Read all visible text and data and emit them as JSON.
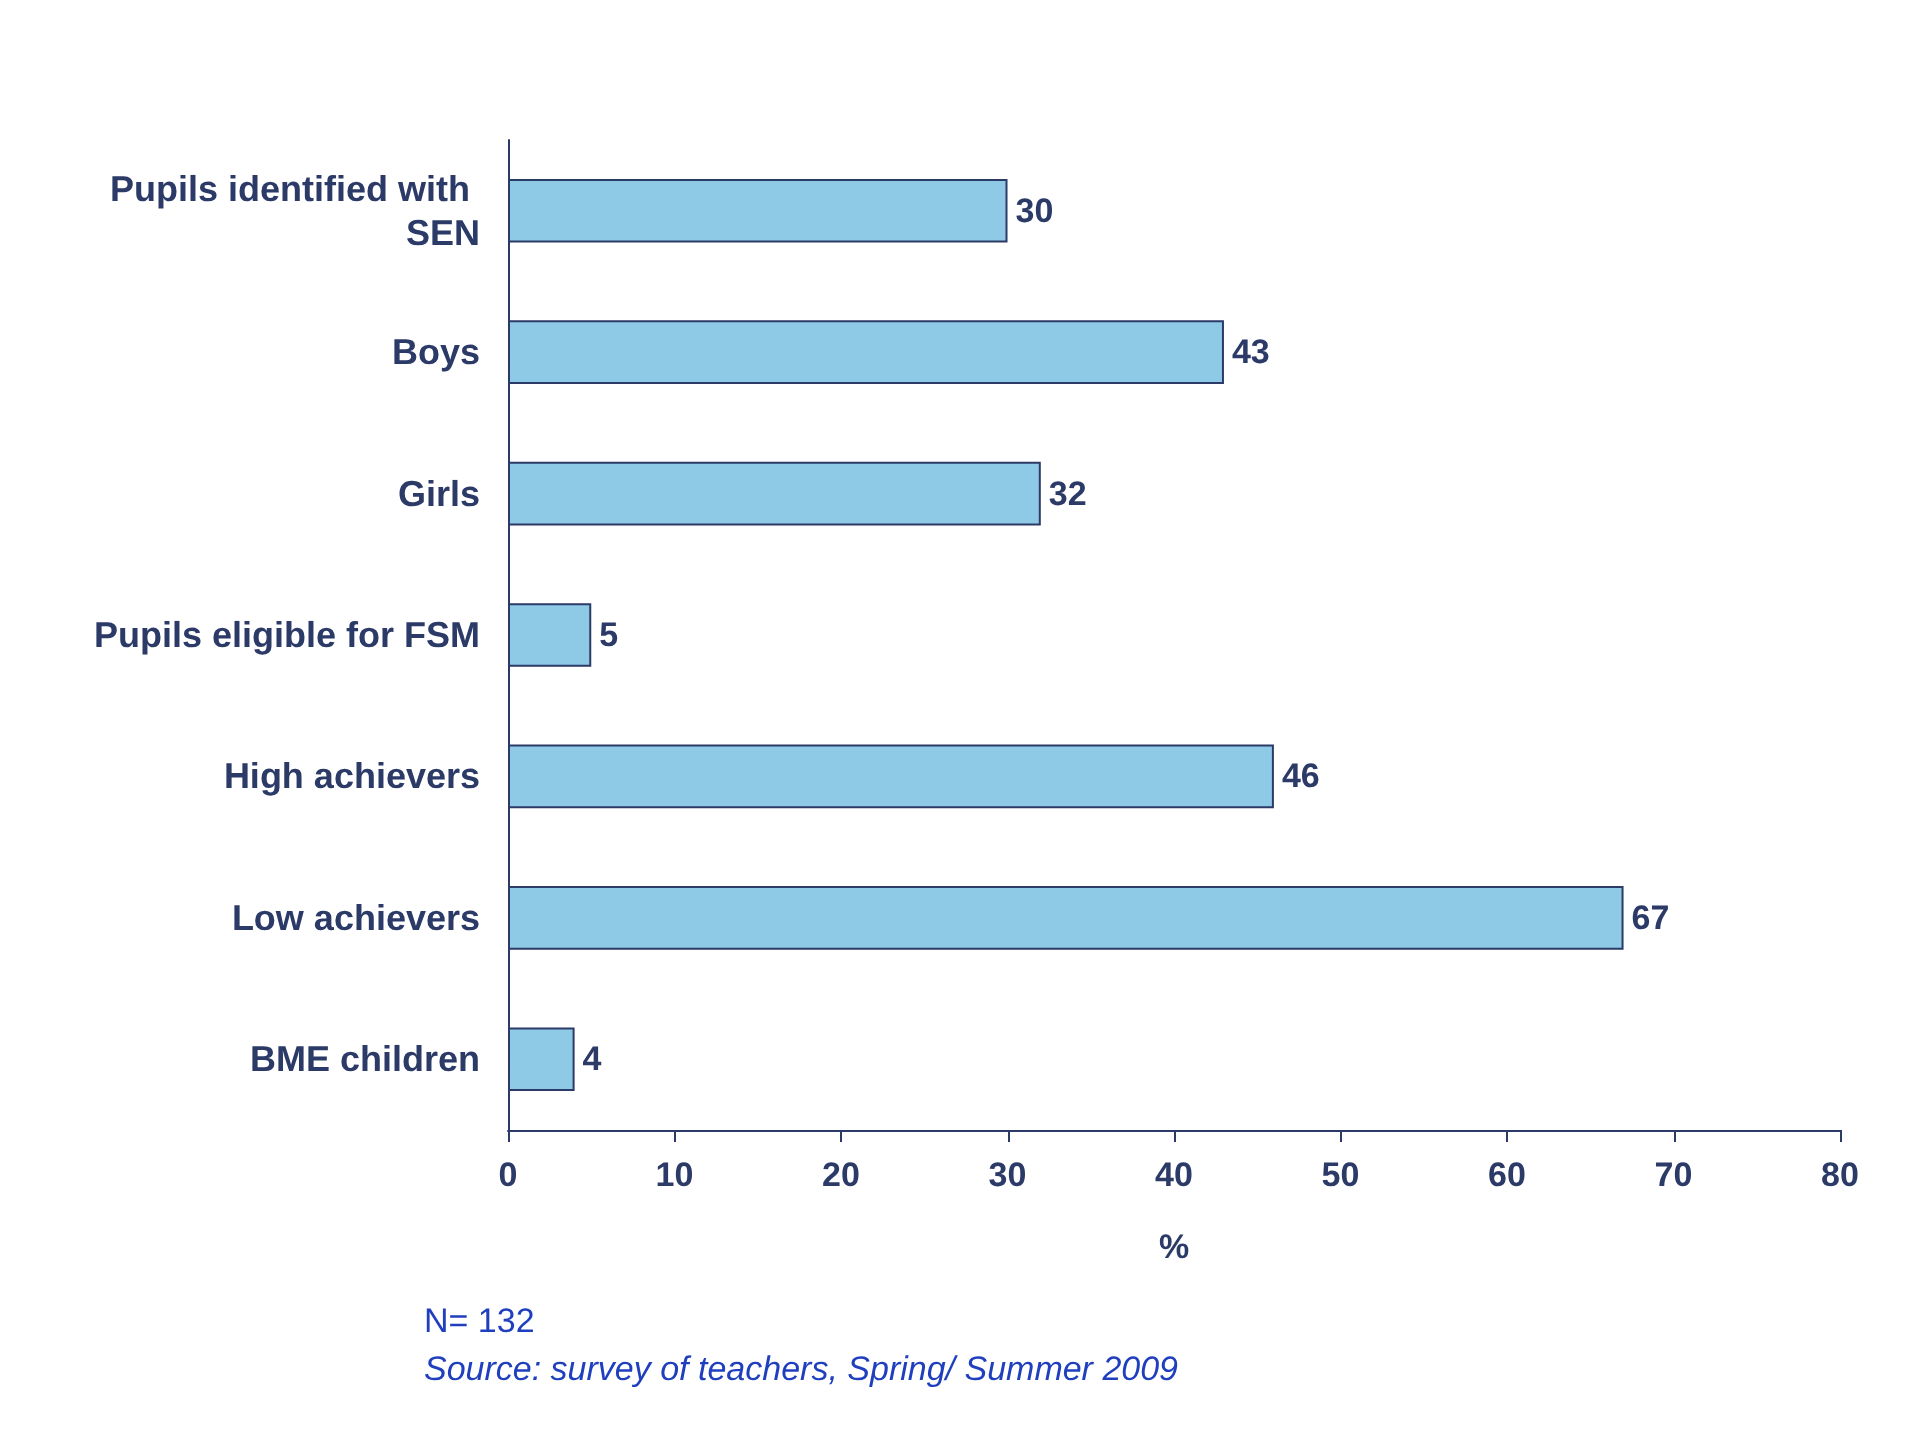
{
  "chart_data": {
    "type": "bar",
    "orientation": "horizontal",
    "xlabel": "%",
    "categories": [
      "Pupils identified with SEN",
      "Boys",
      "Girls",
      "Pupils eligible for FSM",
      "High achievers",
      "Low achievers",
      "BME children"
    ],
    "values": [
      30,
      43,
      32,
      5,
      46,
      67,
      4
    ],
    "color": "#8ecae6",
    "data_labels": true,
    "xlim": [
      0,
      80
    ],
    "xticks": [
      0,
      10,
      20,
      30,
      40,
      50,
      60,
      70,
      80
    ],
    "grid": false,
    "annotations": [
      "N= 132",
      "Source: survey of teachers, Spring/ Summer 2009"
    ]
  }
}
